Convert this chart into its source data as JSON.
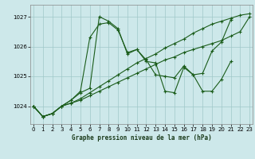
{
  "title": "Graphe pression niveau de la mer (hPa)",
  "bg_color": "#cde8ea",
  "line_color": "#1a5c1a",
  "grid_color": "#a0c8c8",
  "ylim": [
    1023.4,
    1027.4
  ],
  "xlim": [
    -0.3,
    23.3
  ],
  "yticks": [
    1024,
    1025,
    1026,
    1027
  ],
  "xticks": [
    0,
    1,
    2,
    3,
    4,
    5,
    6,
    7,
    8,
    9,
    10,
    11,
    12,
    13,
    14,
    15,
    16,
    17,
    18,
    19,
    20,
    21,
    22,
    23
  ],
  "series": [
    {
      "x": [
        0,
        1,
        2,
        3,
        4,
        5,
        6,
        7,
        8,
        9,
        10,
        11,
        12,
        13,
        14,
        15,
        16,
        17,
        18,
        19,
        20,
        21,
        22,
        23
      ],
      "y": [
        1024.0,
        1023.65,
        1023.75,
        1024.0,
        1024.1,
        1024.2,
        1024.35,
        1024.5,
        1024.65,
        1024.8,
        1024.95,
        1025.1,
        1025.25,
        1025.4,
        1025.55,
        1025.65,
        1025.8,
        1025.9,
        1026.0,
        1026.1,
        1026.2,
        1026.35,
        1026.5,
        1027.0
      ]
    },
    {
      "x": [
        0,
        1,
        2,
        3,
        4,
        5,
        6,
        7,
        8,
        9,
        10,
        11,
        12,
        13,
        14,
        15,
        16,
        17,
        18,
        19,
        20,
        21,
        22,
        23
      ],
      "y": [
        1024.0,
        1023.65,
        1023.75,
        1024.0,
        1024.1,
        1024.25,
        1024.45,
        1024.65,
        1024.85,
        1025.05,
        1025.25,
        1025.45,
        1025.6,
        1025.75,
        1025.95,
        1026.1,
        1026.25,
        1026.45,
        1026.6,
        1026.75,
        1026.85,
        1026.95,
        1027.05,
        1027.1
      ]
    },
    {
      "x": [
        0,
        1,
        2,
        3,
        4,
        5,
        6,
        7,
        8,
        9,
        10,
        11,
        12,
        13,
        14,
        15,
        16,
        17,
        18,
        19,
        20,
        21
      ],
      "y": [
        1024.0,
        1023.65,
        1023.75,
        1024.0,
        1024.2,
        1024.5,
        1026.3,
        1026.75,
        1026.8,
        1026.55,
        1025.8,
        1025.9,
        1025.55,
        1025.05,
        1025.0,
        1024.95,
        1025.35,
        1025.05,
        1025.1,
        1025.85,
        1026.15,
        1026.9
      ]
    },
    {
      "x": [
        0,
        1,
        2,
        3,
        4,
        5,
        6,
        7,
        8,
        9,
        10,
        11,
        12,
        13,
        14,
        15,
        16,
        17,
        18,
        19,
        20,
        21
      ],
      "y": [
        1024.0,
        1023.65,
        1023.75,
        1024.0,
        1024.2,
        1024.45,
        1024.6,
        1027.0,
        1026.85,
        1026.6,
        1025.75,
        1025.9,
        1025.5,
        1025.45,
        1024.5,
        1024.45,
        1025.3,
        1025.05,
        1024.5,
        1024.5,
        1024.9,
        1025.5
      ]
    }
  ]
}
